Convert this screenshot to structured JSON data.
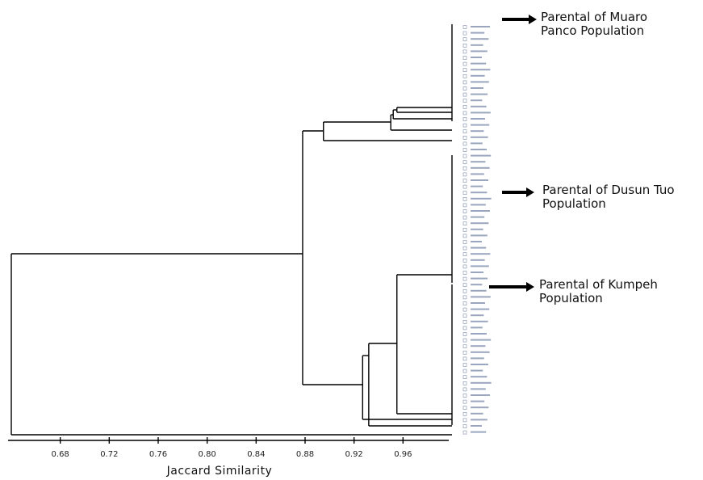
{
  "chart_data": {
    "type": "dendrogram",
    "title": "",
    "xlabel": "Jaccard Similarity",
    "ylabel": "",
    "xlim": [
      0.64,
      1.0
    ],
    "x_ticks": [
      0.68,
      0.72,
      0.76,
      0.8,
      0.84,
      0.88,
      0.92,
      0.96
    ],
    "x_tick_labels": [
      "0.68",
      "0.72",
      "0.76",
      "0.80",
      "0.84",
      "0.88",
      "0.92",
      "0.96"
    ],
    "annotations": [
      {
        "lines": [
          "Parental of Muaro",
          "Panco Population"
        ],
        "arrow": "right"
      },
      {
        "lines": [
          "Parental of Dusun Tuo",
          "Population"
        ],
        "arrow": "right"
      },
      {
        "lines": [
          "Parental of Kumpeh",
          "Population"
        ],
        "arrow": "right"
      }
    ],
    "groups": [
      {
        "name": "Parental of Muaro Panco Population",
        "leaf_count": 19
      },
      {
        "name": "Parental of Dusun Tuo Population",
        "leaf_count": 20
      },
      {
        "name": "Parental of Kumpeh Population",
        "leaf_count": 25
      }
    ],
    "merges": [
      {
        "id": "muaro_core",
        "similarity": 1.0
      },
      {
        "id": "m_a",
        "similarity": 0.955,
        "children": [
          "muaro_core",
          "leaf"
        ]
      },
      {
        "id": "m_b",
        "similarity": 0.952,
        "children": [
          "m_a",
          "leaf"
        ]
      },
      {
        "id": "m_c",
        "similarity": 0.95,
        "children": [
          "m_b",
          "leaf"
        ]
      },
      {
        "id": "muaro_cluster",
        "similarity": 0.895,
        "children": [
          "m_c",
          "leaf"
        ]
      },
      {
        "id": "dusun_cluster",
        "similarity": 1.0
      },
      {
        "id": "kumpeh_core",
        "similarity": 1.0
      },
      {
        "id": "k_a",
        "similarity": 0.955,
        "children": [
          "dusun_cluster",
          "kumpeh_core"
        ]
      },
      {
        "id": "k_b",
        "similarity": 0.932,
        "children": [
          "k_a",
          "leaf"
        ]
      },
      {
        "id": "k_c",
        "similarity": 0.927,
        "children": [
          "k_b",
          "leaf"
        ]
      },
      {
        "id": "main_cluster",
        "similarity": 0.878,
        "children": [
          "muaro_cluster",
          "k_c"
        ]
      },
      {
        "id": "root",
        "similarity": 0.64,
        "children": [
          "main_cluster",
          "leaf"
        ]
      }
    ]
  }
}
